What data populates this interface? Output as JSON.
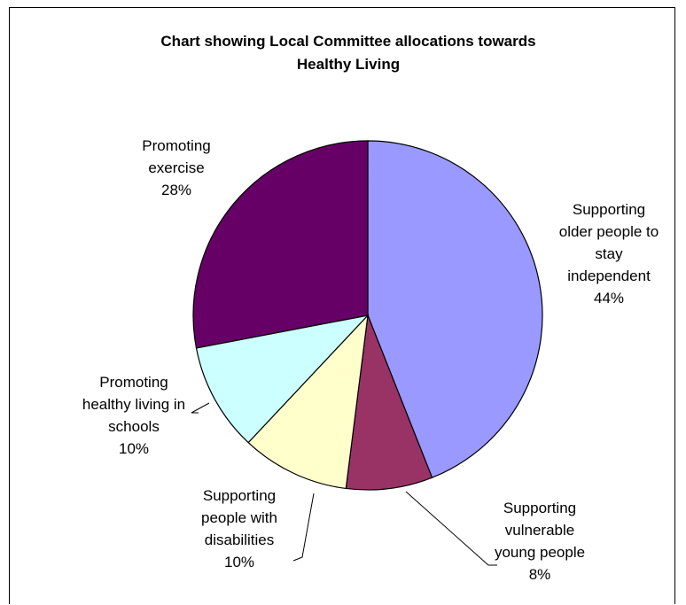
{
  "chart_data": {
    "type": "pie",
    "title": "Chart showing Local Committee allocations towards Healthy Living",
    "title_lines": [
      "Chart showing Local Committee allocations towards",
      "Healthy Living"
    ],
    "legend": "none",
    "slices": [
      {
        "label_lines": [
          "Supporting",
          "older people to",
          "stay",
          "independent"
        ],
        "value": 44,
        "pct_label": "44%",
        "color": "#9999FF"
      },
      {
        "label_lines": [
          "Supporting",
          "vulnerable",
          "young people"
        ],
        "value": 8,
        "pct_label": "8%",
        "color": "#993366"
      },
      {
        "label_lines": [
          "Supporting",
          "people with",
          "disabilities"
        ],
        "value": 10,
        "pct_label": "10%",
        "color": "#FFFFCC"
      },
      {
        "label_lines": [
          "Promoting",
          "healthy living in",
          "schools"
        ],
        "value": 10,
        "pct_label": "10%",
        "color": "#CCFFFF"
      },
      {
        "label_lines": [
          "Promoting",
          "exercise"
        ],
        "value": 28,
        "pct_label": "28%",
        "color": "#660066"
      }
    ]
  }
}
